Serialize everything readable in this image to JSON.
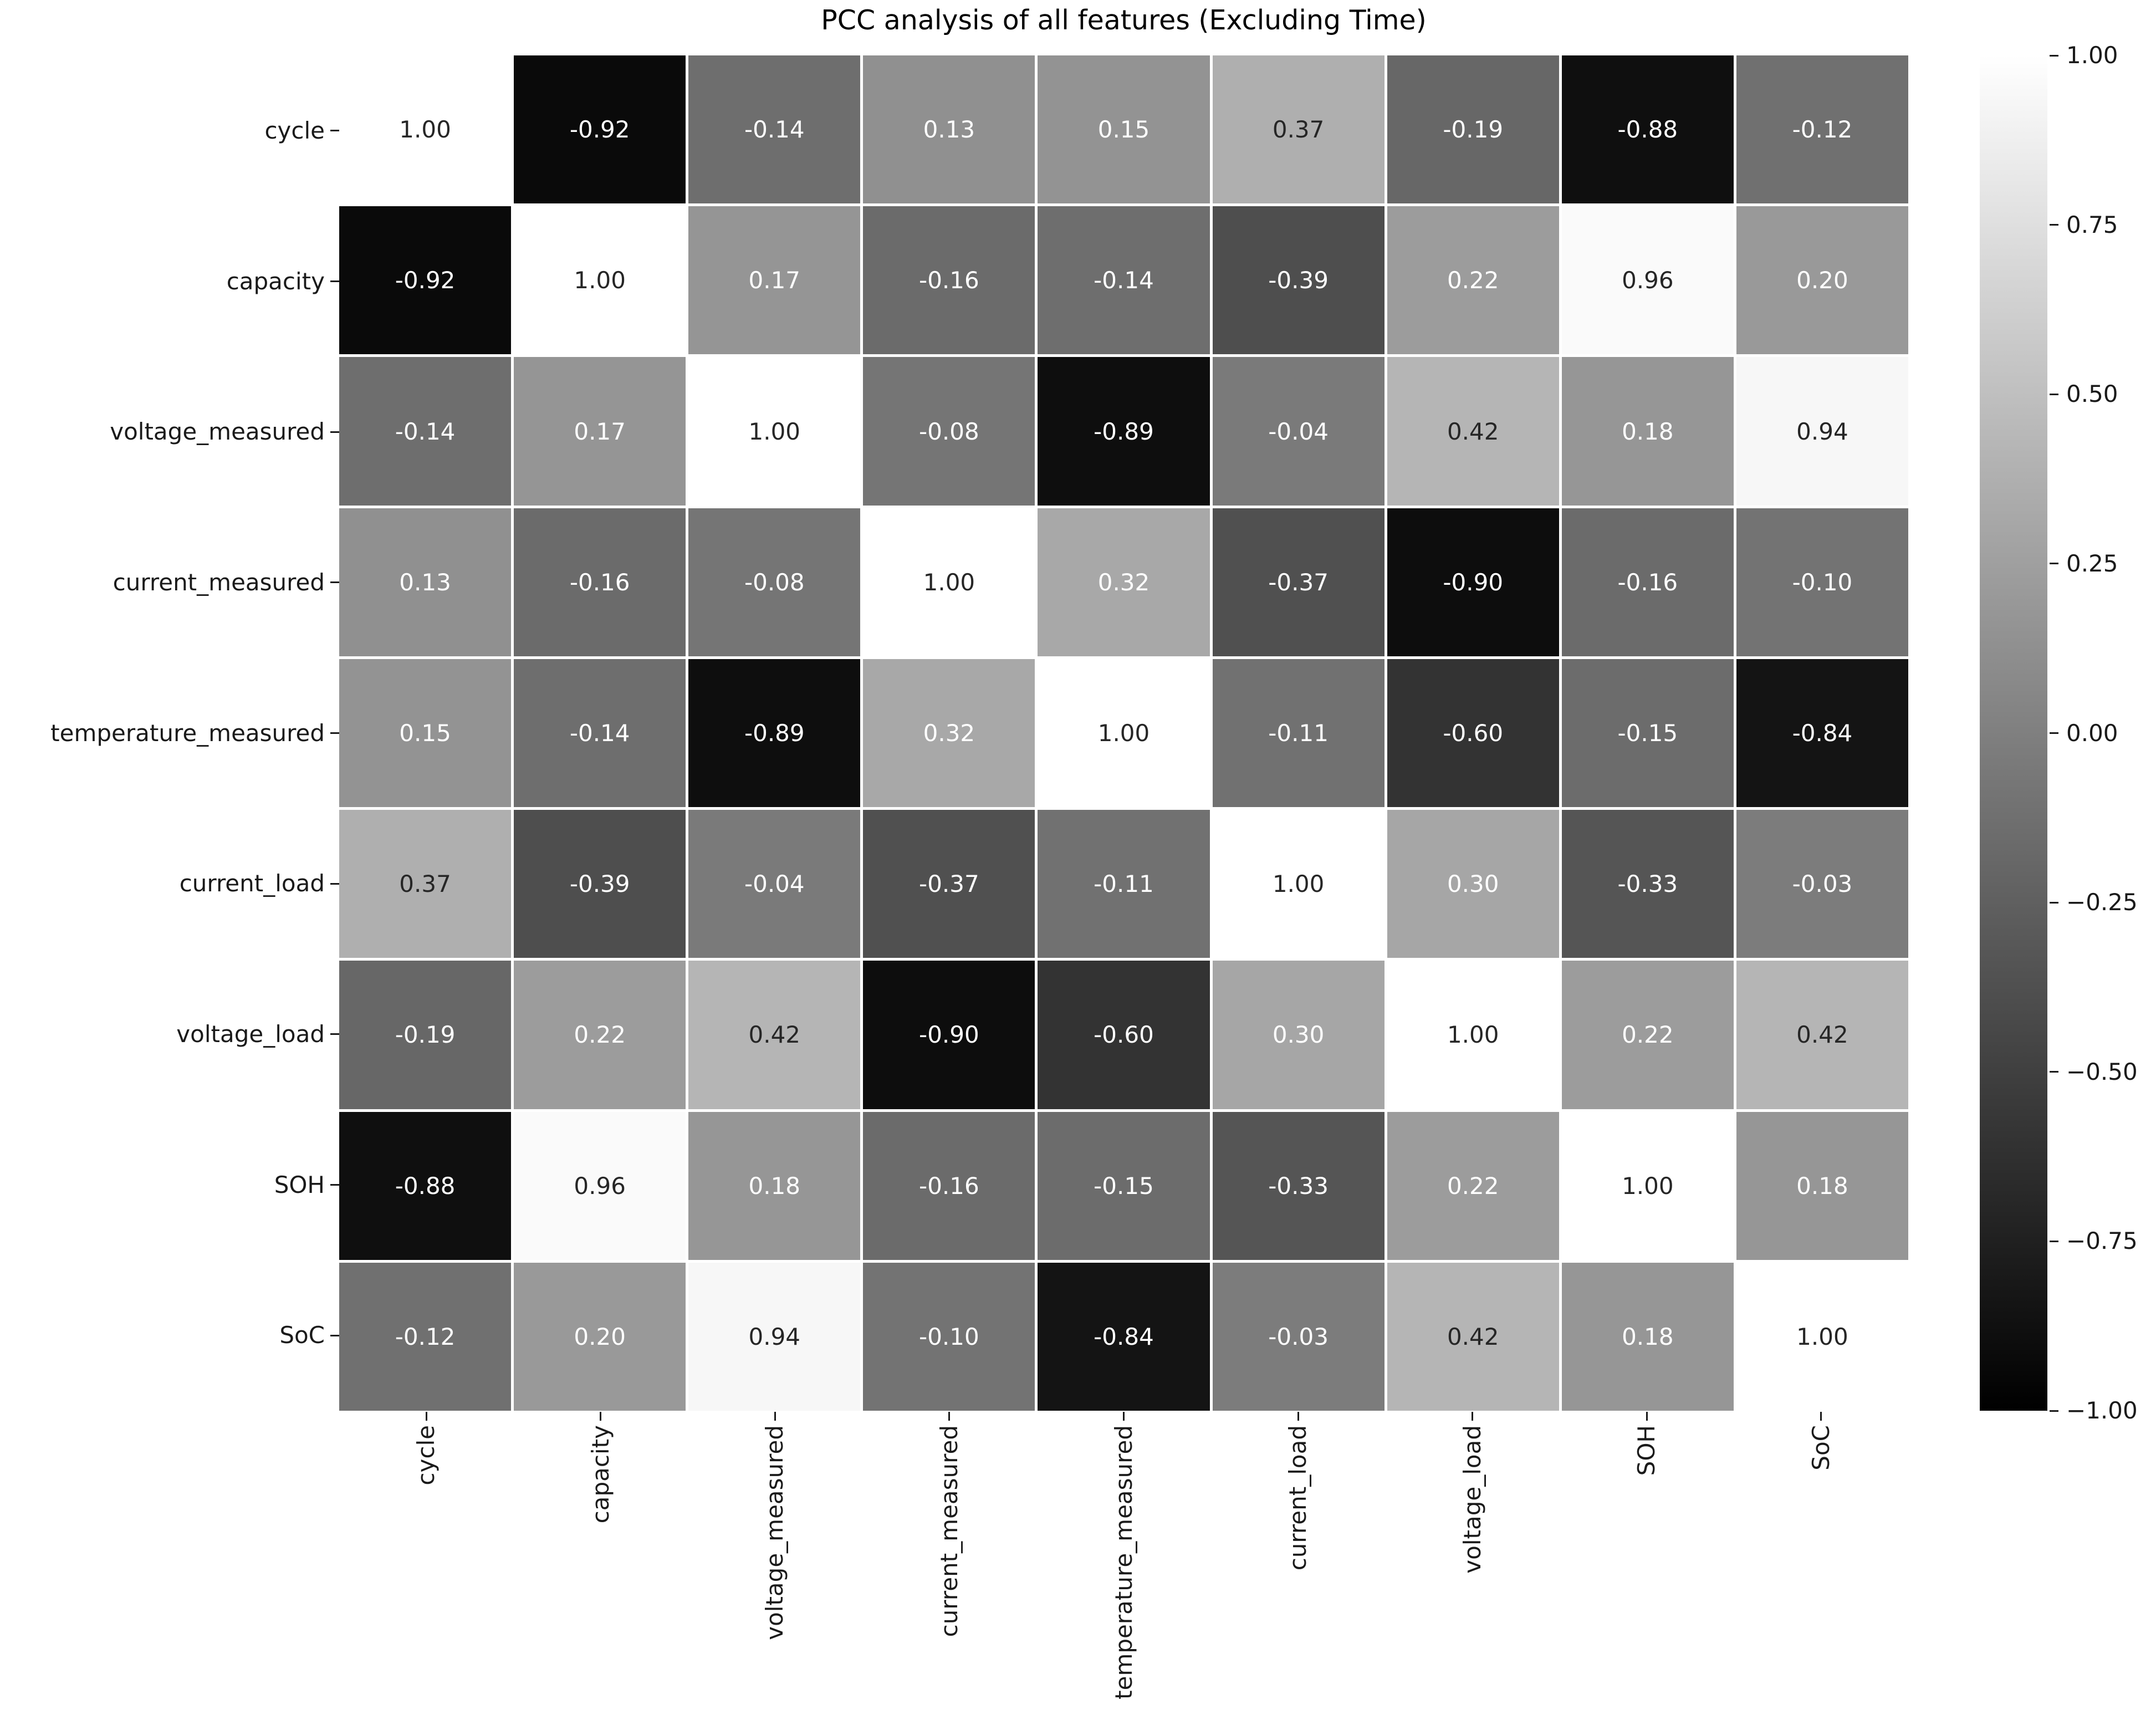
{
  "chart_data": {
    "type": "heatmap",
    "title": "PCC analysis of all features (Excluding Time)",
    "categories": [
      "cycle",
      "capacity",
      "voltage_measured",
      "current_measured",
      "temperature_measured",
      "current_load",
      "voltage_load",
      "SOH",
      "SoC"
    ],
    "matrix": [
      [
        1.0,
        -0.92,
        -0.14,
        0.13,
        0.15,
        0.37,
        -0.19,
        -0.88,
        -0.12
      ],
      [
        -0.92,
        1.0,
        0.17,
        -0.16,
        -0.14,
        -0.39,
        0.22,
        0.96,
        0.2
      ],
      [
        -0.14,
        0.17,
        1.0,
        -0.08,
        -0.89,
        -0.04,
        0.42,
        0.18,
        0.94
      ],
      [
        0.13,
        -0.16,
        -0.08,
        1.0,
        0.32,
        -0.37,
        -0.9,
        -0.16,
        -0.1
      ],
      [
        0.15,
        -0.14,
        -0.89,
        0.32,
        1.0,
        -0.11,
        -0.6,
        -0.15,
        -0.84
      ],
      [
        0.37,
        -0.39,
        -0.04,
        -0.37,
        -0.11,
        1.0,
        0.3,
        -0.33,
        -0.03
      ],
      [
        -0.19,
        0.22,
        0.42,
        -0.9,
        -0.6,
        0.3,
        1.0,
        0.22,
        0.42
      ],
      [
        -0.88,
        0.96,
        0.18,
        -0.16,
        -0.15,
        -0.33,
        0.22,
        1.0,
        0.18
      ],
      [
        -0.12,
        0.2,
        0.94,
        -0.1,
        -0.84,
        -0.03,
        0.42,
        0.18,
        1.0
      ]
    ],
    "value_decimals": 2,
    "colormap": {
      "name": "gray",
      "vmin": -1.0,
      "vmax": 1.0,
      "low_color": "#000000",
      "high_color": "#ffffff"
    },
    "annotation_colors": {
      "on_light": "#262626",
      "on_dark": "#ffffff"
    },
    "colorbar_ticks": [
      "1.00",
      "0.75",
      "0.50",
      "0.25",
      "0.00",
      "−0.25",
      "−0.50",
      "−0.75",
      "−1.00"
    ],
    "colorbar_position": "right",
    "grid": false,
    "x_tick_rotation": 90
  }
}
